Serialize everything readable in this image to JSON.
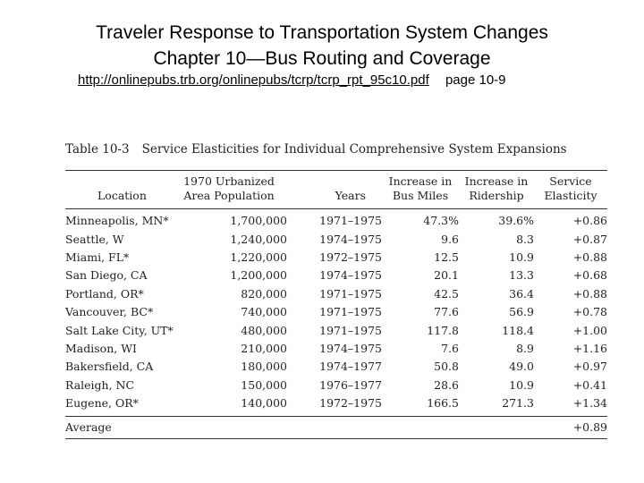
{
  "slide": {
    "title_line1": "Traveler Response to Transportation System Changes",
    "title_line2": "Chapter 10—Bus Routing and Coverage",
    "source_url": "http://onlinepubs.trb.org/onlinepubs/tcrp/tcrp_rpt_95c10.pdf",
    "page_ref": "page 10-9"
  },
  "table": {
    "caption_number": "Table 10-3",
    "caption_text": "Service Elasticities for Individual Comprehensive System Expansions",
    "headers": [
      [
        "",
        "Location"
      ],
      [
        "1970 Urbanized",
        "Area Population"
      ],
      [
        "",
        "Years"
      ],
      [
        "Increase in",
        "Bus Miles"
      ],
      [
        "Increase in",
        "Ridership"
      ],
      [
        "Service",
        "Elasticity"
      ]
    ],
    "rows": [
      [
        "Minneapolis, MN*",
        "1,700,000",
        "1971–1975",
        "47.3%",
        "39.6%",
        "+0.86"
      ],
      [
        "Seattle, W",
        "1,240,000",
        "1974–1975",
        "9.6",
        "8.3",
        "+0.87"
      ],
      [
        "Miami, FL*",
        "1,220,000",
        "1972–1975",
        "12.5",
        "10.9",
        "+0.88"
      ],
      [
        "San Diego, CA",
        "1,200,000",
        "1974–1975",
        "20.1",
        "13.3",
        "+0.68"
      ],
      [
        "Portland, OR*",
        "820,000",
        "1971–1975",
        "42.5",
        "36.4",
        "+0.88"
      ],
      [
        "Vancouver, BC*",
        "740,000",
        "1971–1975",
        "77.6",
        "56.9",
        "+0.78"
      ],
      [
        "Salt Lake City, UT*",
        "480,000",
        "1971–1975",
        "117.8",
        "118.4",
        "+1.00"
      ],
      [
        "Madison, WI",
        "210,000",
        "1974–1975",
        "7.6",
        "8.9",
        "+1.16"
      ],
      [
        "Bakersfield, CA",
        "180,000",
        "1974–1977",
        "50.8",
        "49.0",
        "+0.97"
      ],
      [
        "Raleigh, NC",
        "150,000",
        "1976–1977",
        "28.6",
        "10.9",
        "+0.41"
      ],
      [
        "Eugene, OR*",
        "140,000",
        "1972–1975",
        "166.5",
        "271.3",
        "+1.34"
      ]
    ],
    "average_label": "Average",
    "average_value": "+0.89"
  }
}
